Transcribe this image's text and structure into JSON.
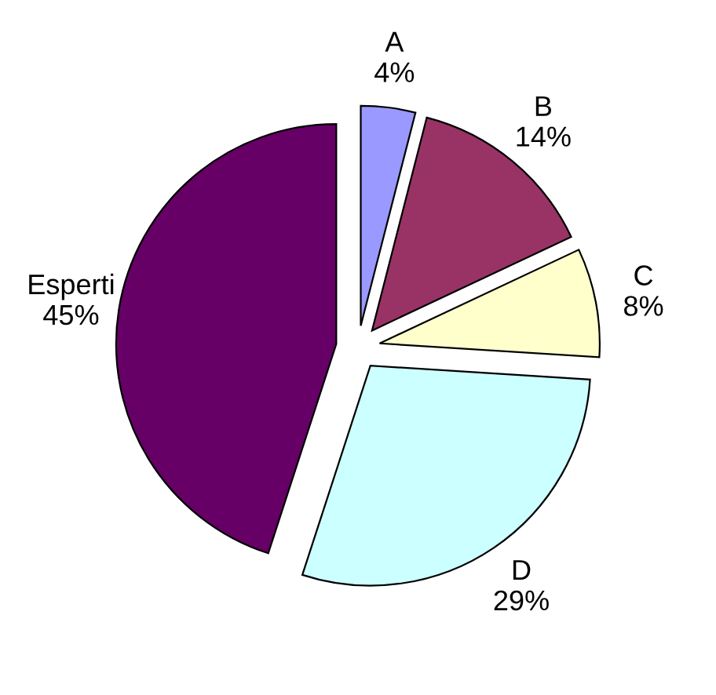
{
  "chart_data": {
    "type": "pie",
    "categories": [
      "A",
      "B",
      "C",
      "D",
      "Esperti"
    ],
    "values": [
      4,
      14,
      8,
      29,
      45
    ],
    "value_labels": [
      "4%",
      "14%",
      "8%",
      "29%",
      "45%"
    ],
    "colors": [
      "#9999ff",
      "#993366",
      "#ffffcc",
      "#ccffff",
      "#660066"
    ],
    "legend": false
  }
}
